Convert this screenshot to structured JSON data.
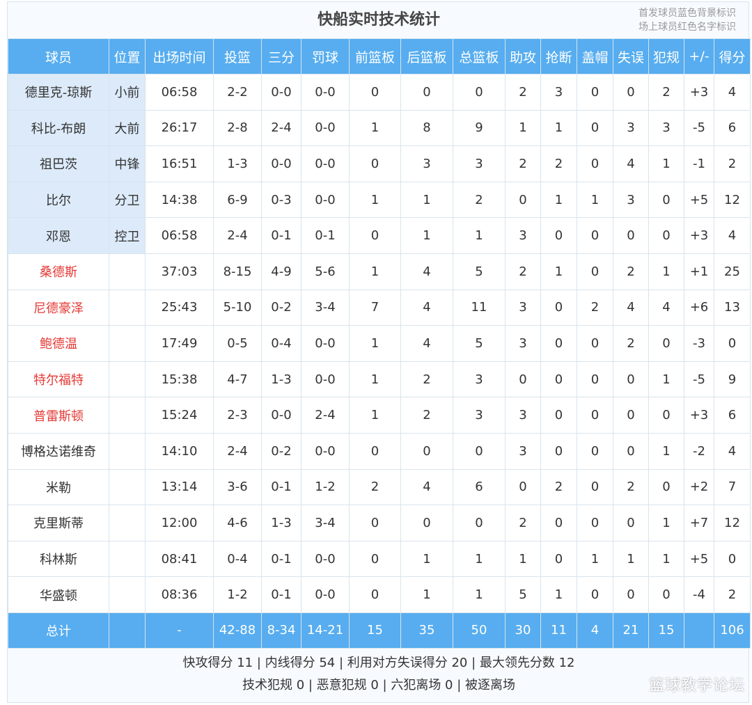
{
  "title": "快船实时技术统计",
  "legend": [
    "首发球员蓝色背景标识",
    "场上球员红色名字标识"
  ],
  "columns": [
    "球员",
    "位置",
    "出场时间",
    "投篮",
    "三分",
    "罚球",
    "前篮板",
    "后篮板",
    "总篮板",
    "助攻",
    "抢断",
    "盖帽",
    "失误",
    "犯规",
    "+/-",
    "得分"
  ],
  "rows": [
    {
      "starter": true,
      "on_court": false,
      "cells": [
        "德里克-琼斯",
        "小前",
        "06:58",
        "2-2",
        "0-0",
        "0-0",
        "0",
        "0",
        "0",
        "2",
        "3",
        "0",
        "0",
        "2",
        "+3",
        "4"
      ]
    },
    {
      "starter": true,
      "on_court": false,
      "cells": [
        "科比-布朗",
        "大前",
        "26:17",
        "2-8",
        "2-4",
        "0-0",
        "1",
        "8",
        "9",
        "1",
        "1",
        "0",
        "3",
        "3",
        "-5",
        "6"
      ]
    },
    {
      "starter": true,
      "on_court": false,
      "cells": [
        "祖巴茨",
        "中锋",
        "16:51",
        "1-3",
        "0-0",
        "0-0",
        "0",
        "3",
        "3",
        "2",
        "2",
        "0",
        "4",
        "1",
        "-1",
        "2"
      ]
    },
    {
      "starter": true,
      "on_court": false,
      "cells": [
        "比尔",
        "分卫",
        "14:38",
        "6-9",
        "0-3",
        "0-0",
        "1",
        "1",
        "2",
        "0",
        "1",
        "1",
        "3",
        "0",
        "+5",
        "12"
      ]
    },
    {
      "starter": true,
      "on_court": false,
      "cells": [
        "邓恩",
        "控卫",
        "06:58",
        "2-4",
        "0-1",
        "0-1",
        "0",
        "1",
        "1",
        "3",
        "0",
        "0",
        "0",
        "0",
        "+3",
        "4"
      ]
    },
    {
      "starter": false,
      "on_court": true,
      "cells": [
        "桑德斯",
        "",
        "37:03",
        "8-15",
        "4-9",
        "5-6",
        "1",
        "4",
        "5",
        "2",
        "1",
        "0",
        "2",
        "1",
        "+1",
        "25"
      ]
    },
    {
      "starter": false,
      "on_court": true,
      "cells": [
        "尼德豪泽",
        "",
        "25:43",
        "5-10",
        "0-2",
        "3-4",
        "7",
        "4",
        "11",
        "3",
        "0",
        "2",
        "4",
        "4",
        "+6",
        "13"
      ]
    },
    {
      "starter": false,
      "on_court": true,
      "cells": [
        "鲍德温",
        "",
        "17:49",
        "0-5",
        "0-4",
        "0-0",
        "1",
        "4",
        "5",
        "3",
        "0",
        "0",
        "2",
        "0",
        "-3",
        "0"
      ]
    },
    {
      "starter": false,
      "on_court": true,
      "cells": [
        "特尔福特",
        "",
        "15:38",
        "4-7",
        "1-3",
        "0-0",
        "1",
        "2",
        "3",
        "0",
        "0",
        "0",
        "0",
        "1",
        "-5",
        "9"
      ]
    },
    {
      "starter": false,
      "on_court": true,
      "cells": [
        "普雷斯顿",
        "",
        "15:24",
        "2-3",
        "0-0",
        "2-4",
        "1",
        "2",
        "3",
        "3",
        "0",
        "0",
        "0",
        "0",
        "+3",
        "6"
      ]
    },
    {
      "starter": false,
      "on_court": false,
      "cells": [
        "博格达诺维奇",
        "",
        "14:10",
        "2-4",
        "0-2",
        "0-0",
        "0",
        "0",
        "0",
        "3",
        "0",
        "0",
        "0",
        "1",
        "-2",
        "4"
      ]
    },
    {
      "starter": false,
      "on_court": false,
      "cells": [
        "米勒",
        "",
        "13:14",
        "3-6",
        "0-1",
        "1-2",
        "2",
        "4",
        "6",
        "0",
        "2",
        "0",
        "2",
        "0",
        "+2",
        "7"
      ]
    },
    {
      "starter": false,
      "on_court": false,
      "cells": [
        "克里斯蒂",
        "",
        "12:00",
        "4-6",
        "1-3",
        "3-4",
        "0",
        "0",
        "0",
        "2",
        "0",
        "0",
        "0",
        "1",
        "+7",
        "12"
      ]
    },
    {
      "starter": false,
      "on_court": false,
      "cells": [
        "科林斯",
        "",
        "08:41",
        "0-4",
        "0-1",
        "0-0",
        "0",
        "1",
        "1",
        "1",
        "0",
        "1",
        "1",
        "1",
        "+5",
        "0"
      ]
    },
    {
      "starter": false,
      "on_court": false,
      "cells": [
        "华盛顿",
        "",
        "08:36",
        "1-2",
        "0-1",
        "0-0",
        "0",
        "1",
        "1",
        "5",
        "1",
        "0",
        "0",
        "0",
        "-4",
        "2"
      ]
    }
  ],
  "total": [
    "总计",
    "",
    "-",
    "42-88",
    "8-34",
    "14-21",
    "15",
    "35",
    "50",
    "30",
    "11",
    "4",
    "21",
    "15",
    "",
    "106"
  ],
  "footer": [
    "快攻得分 11 | 内线得分 54 | 利用对方失误得分 20 | 最大领先分数 12",
    "技术犯规 0 | 恶意犯规 0 | 六犯离场 0 | 被逐离场"
  ],
  "watermark": "篮球教学论坛",
  "colors": {
    "header": "#57adef",
    "starter_bg": "#dceaf9",
    "on_court_name": "#e53935"
  }
}
